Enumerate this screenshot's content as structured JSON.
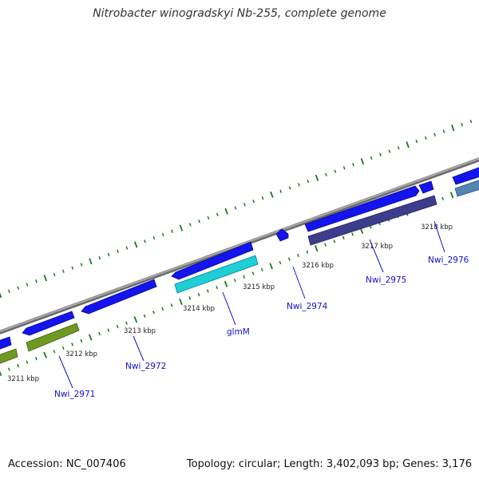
{
  "title": "Nitrobacter winogradskyi Nb-255, complete genome",
  "footer": {
    "accession": "Accession: NC_007406",
    "summary": "Topology: circular; Length: 3,402,093 bp; Genes: 3,176"
  },
  "colors": {
    "backbone": "#8a8a8a",
    "tick": "#1a7a1a",
    "label_line": "#1010cc",
    "gene_blue": "#1414ee",
    "gene_cyan": "#1ecfd6",
    "gene_olive": "#6f9a22",
    "gene_purple": "#3d3d8e",
    "gene_steel": "#4f86b4"
  },
  "tick_labels": [
    "3211 kbp",
    "3212 kbp",
    "3213 kbp",
    "3214 kbp",
    "3215 kbp",
    "3216 kbp",
    "3217 kbp",
    "3218 kbp"
  ],
  "gene_labels": [
    "Nwi_2971",
    "Nwi_2972",
    "glmM",
    "Nwi_2974",
    "Nwi_2975",
    "Nwi_2976"
  ]
}
